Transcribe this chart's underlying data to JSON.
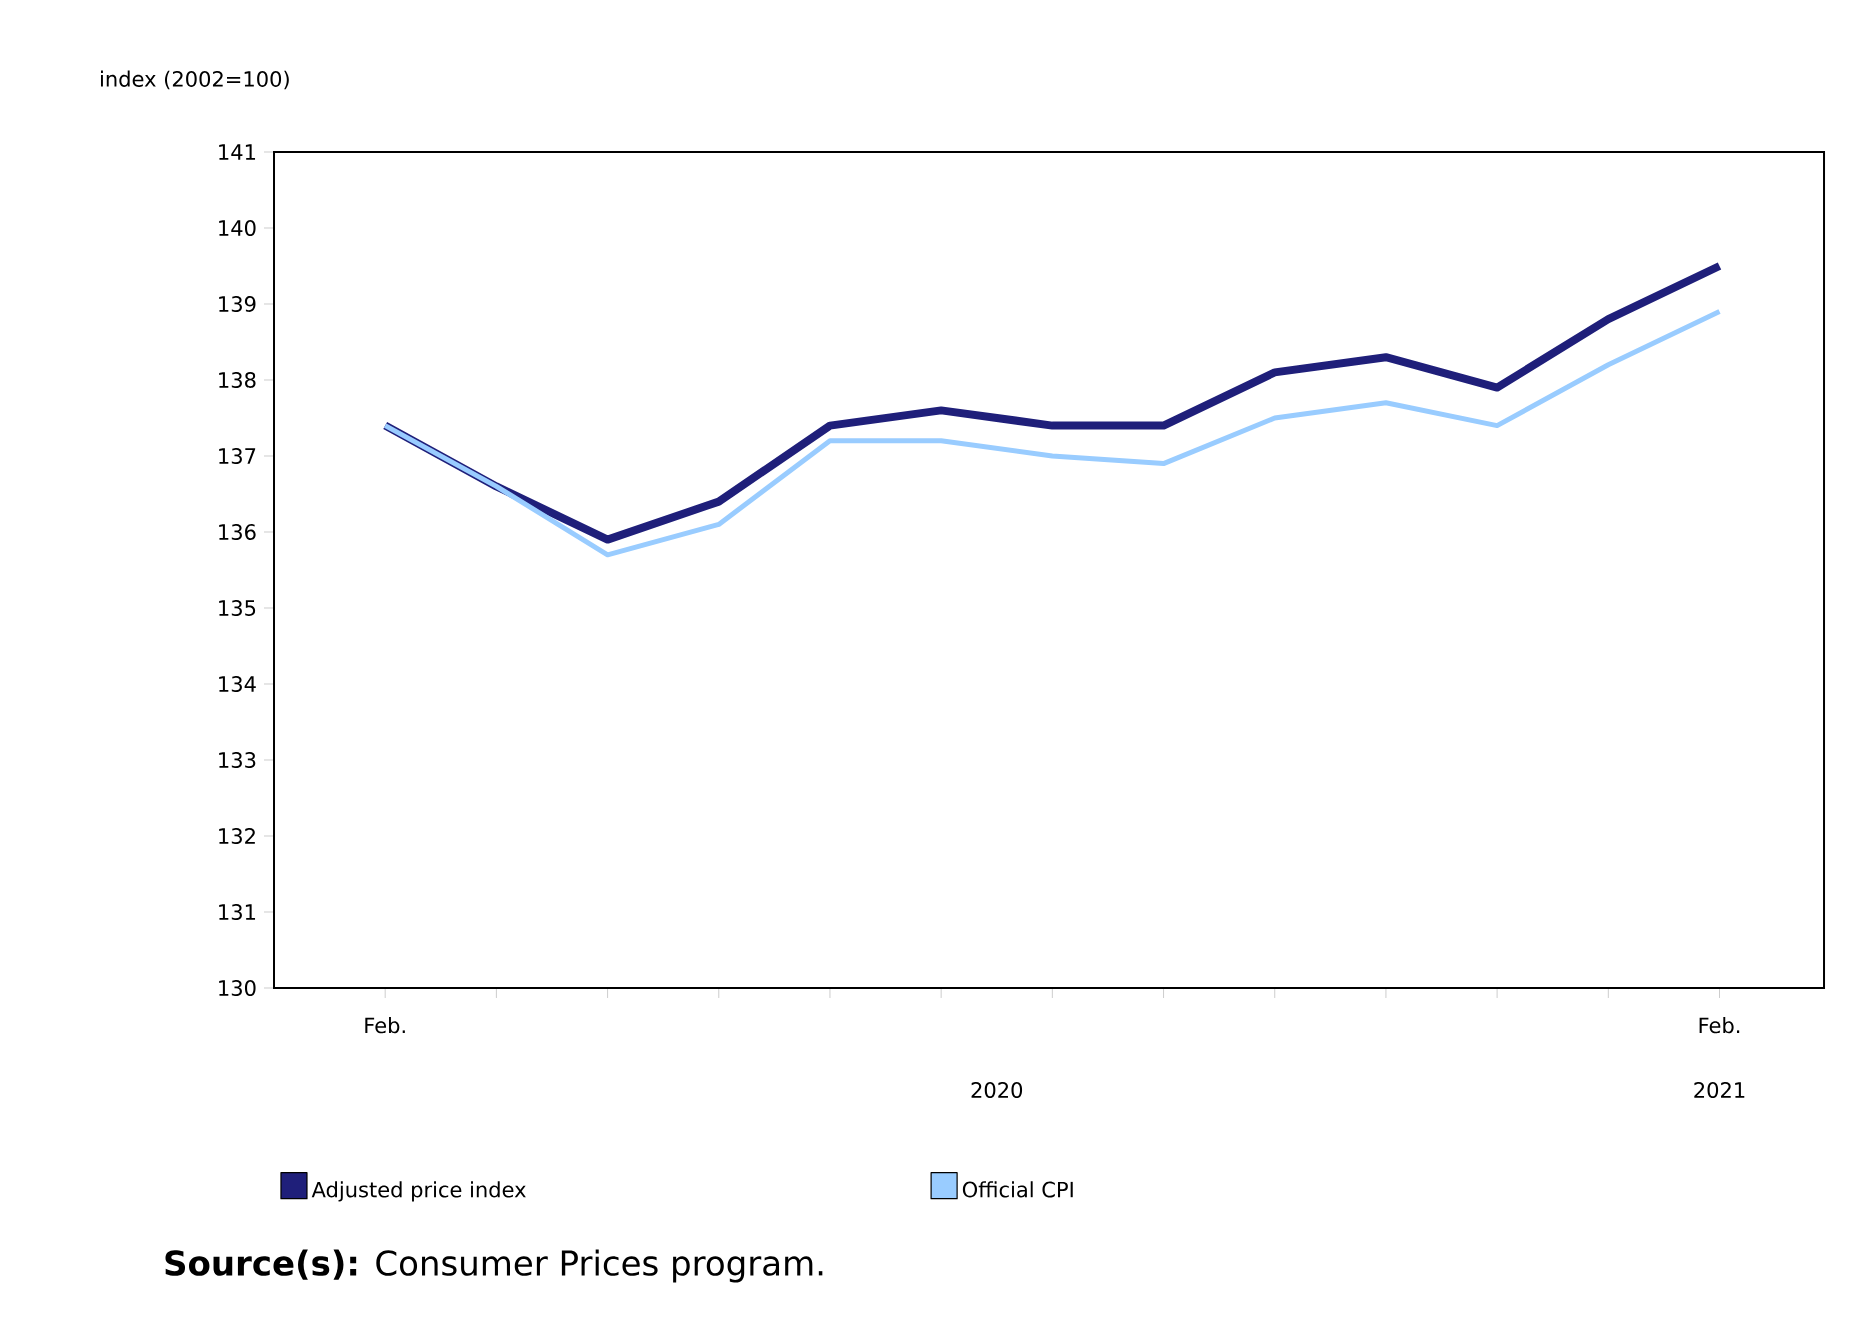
{
  "chart_data": {
    "type": "line",
    "ylabel": "index (2002=100)",
    "categories": [
      "Feb.",
      null,
      null,
      null,
      null,
      null,
      null,
      null,
      null,
      null,
      null,
      null,
      "Feb."
    ],
    "series": [
      {
        "name": "Adjusted price index",
        "color": "#1f1f7a",
        "values": [
          137.4,
          136.6,
          135.9,
          136.4,
          137.4,
          137.6,
          137.4,
          137.4,
          138.1,
          138.3,
          137.9,
          138.8,
          139.5
        ]
      },
      {
        "name": "Official CPI",
        "color": "#99ccff",
        "values": [
          137.4,
          136.6,
          135.7,
          136.1,
          137.2,
          137.2,
          137.0,
          136.9,
          137.5,
          137.7,
          137.4,
          138.2,
          138.9
        ]
      }
    ],
    "ylim": [
      130,
      141
    ],
    "yticks": [
      130,
      131,
      132,
      133,
      134,
      135,
      136,
      137,
      138,
      139,
      140,
      141
    ],
    "grid": false,
    "legend": "bottom",
    "marker": "none",
    "line_style": "solid",
    "annotations": [
      "2020",
      "2021",
      "**Source(s):** Consumer Prices program."
    ]
  }
}
